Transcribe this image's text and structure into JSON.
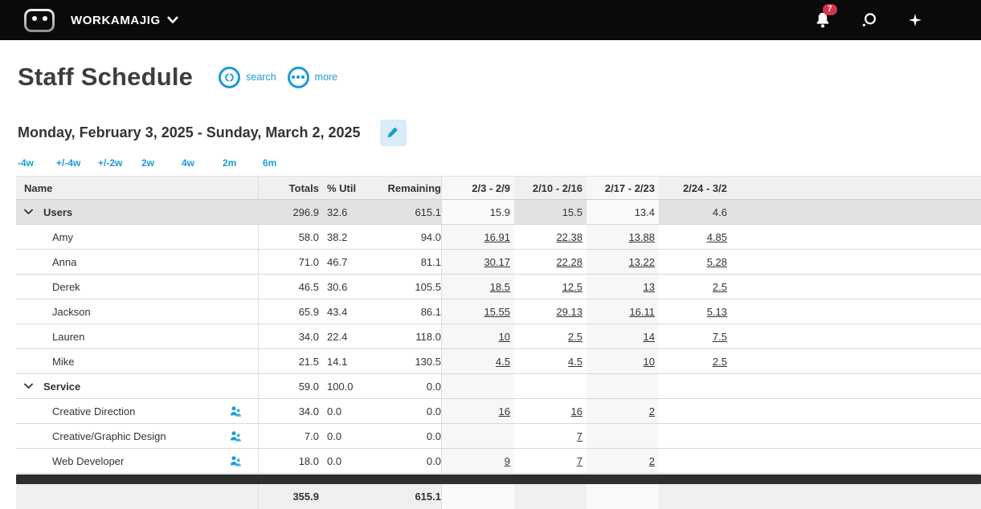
{
  "topbar": {
    "brand": "WORKAMAJIG",
    "notification_count": "7"
  },
  "page": {
    "title": "Staff Schedule",
    "search_label": "search",
    "more_label": "more",
    "date_range": "Monday, February 3, 2025 - Sunday, March 2, 2025",
    "range_links": [
      "-4w",
      "+/-4w",
      "+/-2w",
      "2w",
      "4w",
      "2m",
      "6m"
    ]
  },
  "colors": {
    "accent": "#1a9bd7",
    "badge": "#d2354d",
    "row_highlight": "#e2e2e2",
    "topbar": "#0a0a0a"
  },
  "table": {
    "headers": {
      "name": "Name",
      "totals": "Totals",
      "util": "% Util",
      "remaining": "Remaining",
      "weeks": [
        "2/3 - 2/9",
        "2/10 - 2/16",
        "2/17 - 2/23",
        "2/24 - 3/2"
      ]
    },
    "rows": [
      {
        "name": "Users",
        "type": "group",
        "highlight": true,
        "totals": "296.9",
        "util": "32.6",
        "remaining": "615.1",
        "weeks": [
          "15.9",
          "15.5",
          "13.4",
          "4.6"
        ],
        "week_links": false
      },
      {
        "name": "Amy",
        "type": "person",
        "highlight": false,
        "totals": "58.0",
        "util": "38.2",
        "remaining": "94.0",
        "weeks": [
          "16.91",
          "22.38",
          "13.88",
          "4.85"
        ],
        "week_links": true
      },
      {
        "name": "Anna",
        "type": "person",
        "highlight": false,
        "totals": "71.0",
        "util": "46.7",
        "remaining": "81.1",
        "weeks": [
          "30.17",
          "22.28",
          "13.22",
          "5.28"
        ],
        "week_links": true
      },
      {
        "name": "Derek",
        "type": "person",
        "highlight": false,
        "totals": "46.5",
        "util": "30.6",
        "remaining": "105.5",
        "weeks": [
          "18.5",
          "12.5",
          "13",
          "2.5"
        ],
        "week_links": true
      },
      {
        "name": "Jackson",
        "type": "person",
        "highlight": false,
        "totals": "65.9",
        "util": "43.4",
        "remaining": "86.1",
        "weeks": [
          "15.55",
          "29.13",
          "16.11",
          "5.13"
        ],
        "week_links": true
      },
      {
        "name": "Lauren",
        "type": "person",
        "highlight": false,
        "totals": "34.0",
        "util": "22.4",
        "remaining": "118.0",
        "weeks": [
          "10",
          "2.5",
          "14",
          "7.5"
        ],
        "week_links": true
      },
      {
        "name": "Mike",
        "type": "person",
        "highlight": false,
        "totals": "21.5",
        "util": "14.1",
        "remaining": "130.5",
        "weeks": [
          "4.5",
          "4.5",
          "10",
          "2.5"
        ],
        "week_links": true
      },
      {
        "name": "Service",
        "type": "group",
        "highlight": false,
        "totals": "59.0",
        "util": "100.0",
        "remaining": "0.0",
        "weeks": [
          "",
          "",
          "",
          ""
        ],
        "week_links": false
      },
      {
        "name": "Creative Direction",
        "type": "service",
        "highlight": false,
        "totals": "34.0",
        "util": "0.0",
        "remaining": "0.0",
        "weeks": [
          "16",
          "16",
          "2",
          ""
        ],
        "week_links": true
      },
      {
        "name": "Creative/Graphic Design",
        "type": "service",
        "highlight": false,
        "totals": "7.0",
        "util": "0.0",
        "remaining": "0.0",
        "weeks": [
          "",
          "7",
          "",
          ""
        ],
        "week_links": true
      },
      {
        "name": "Web Developer",
        "type": "service",
        "highlight": false,
        "totals": "18.0",
        "util": "0.0",
        "remaining": "0.0",
        "weeks": [
          "9",
          "7",
          "2",
          ""
        ],
        "week_links": true
      }
    ],
    "footer": {
      "totals": "355.9",
      "remaining": "615.1"
    }
  }
}
